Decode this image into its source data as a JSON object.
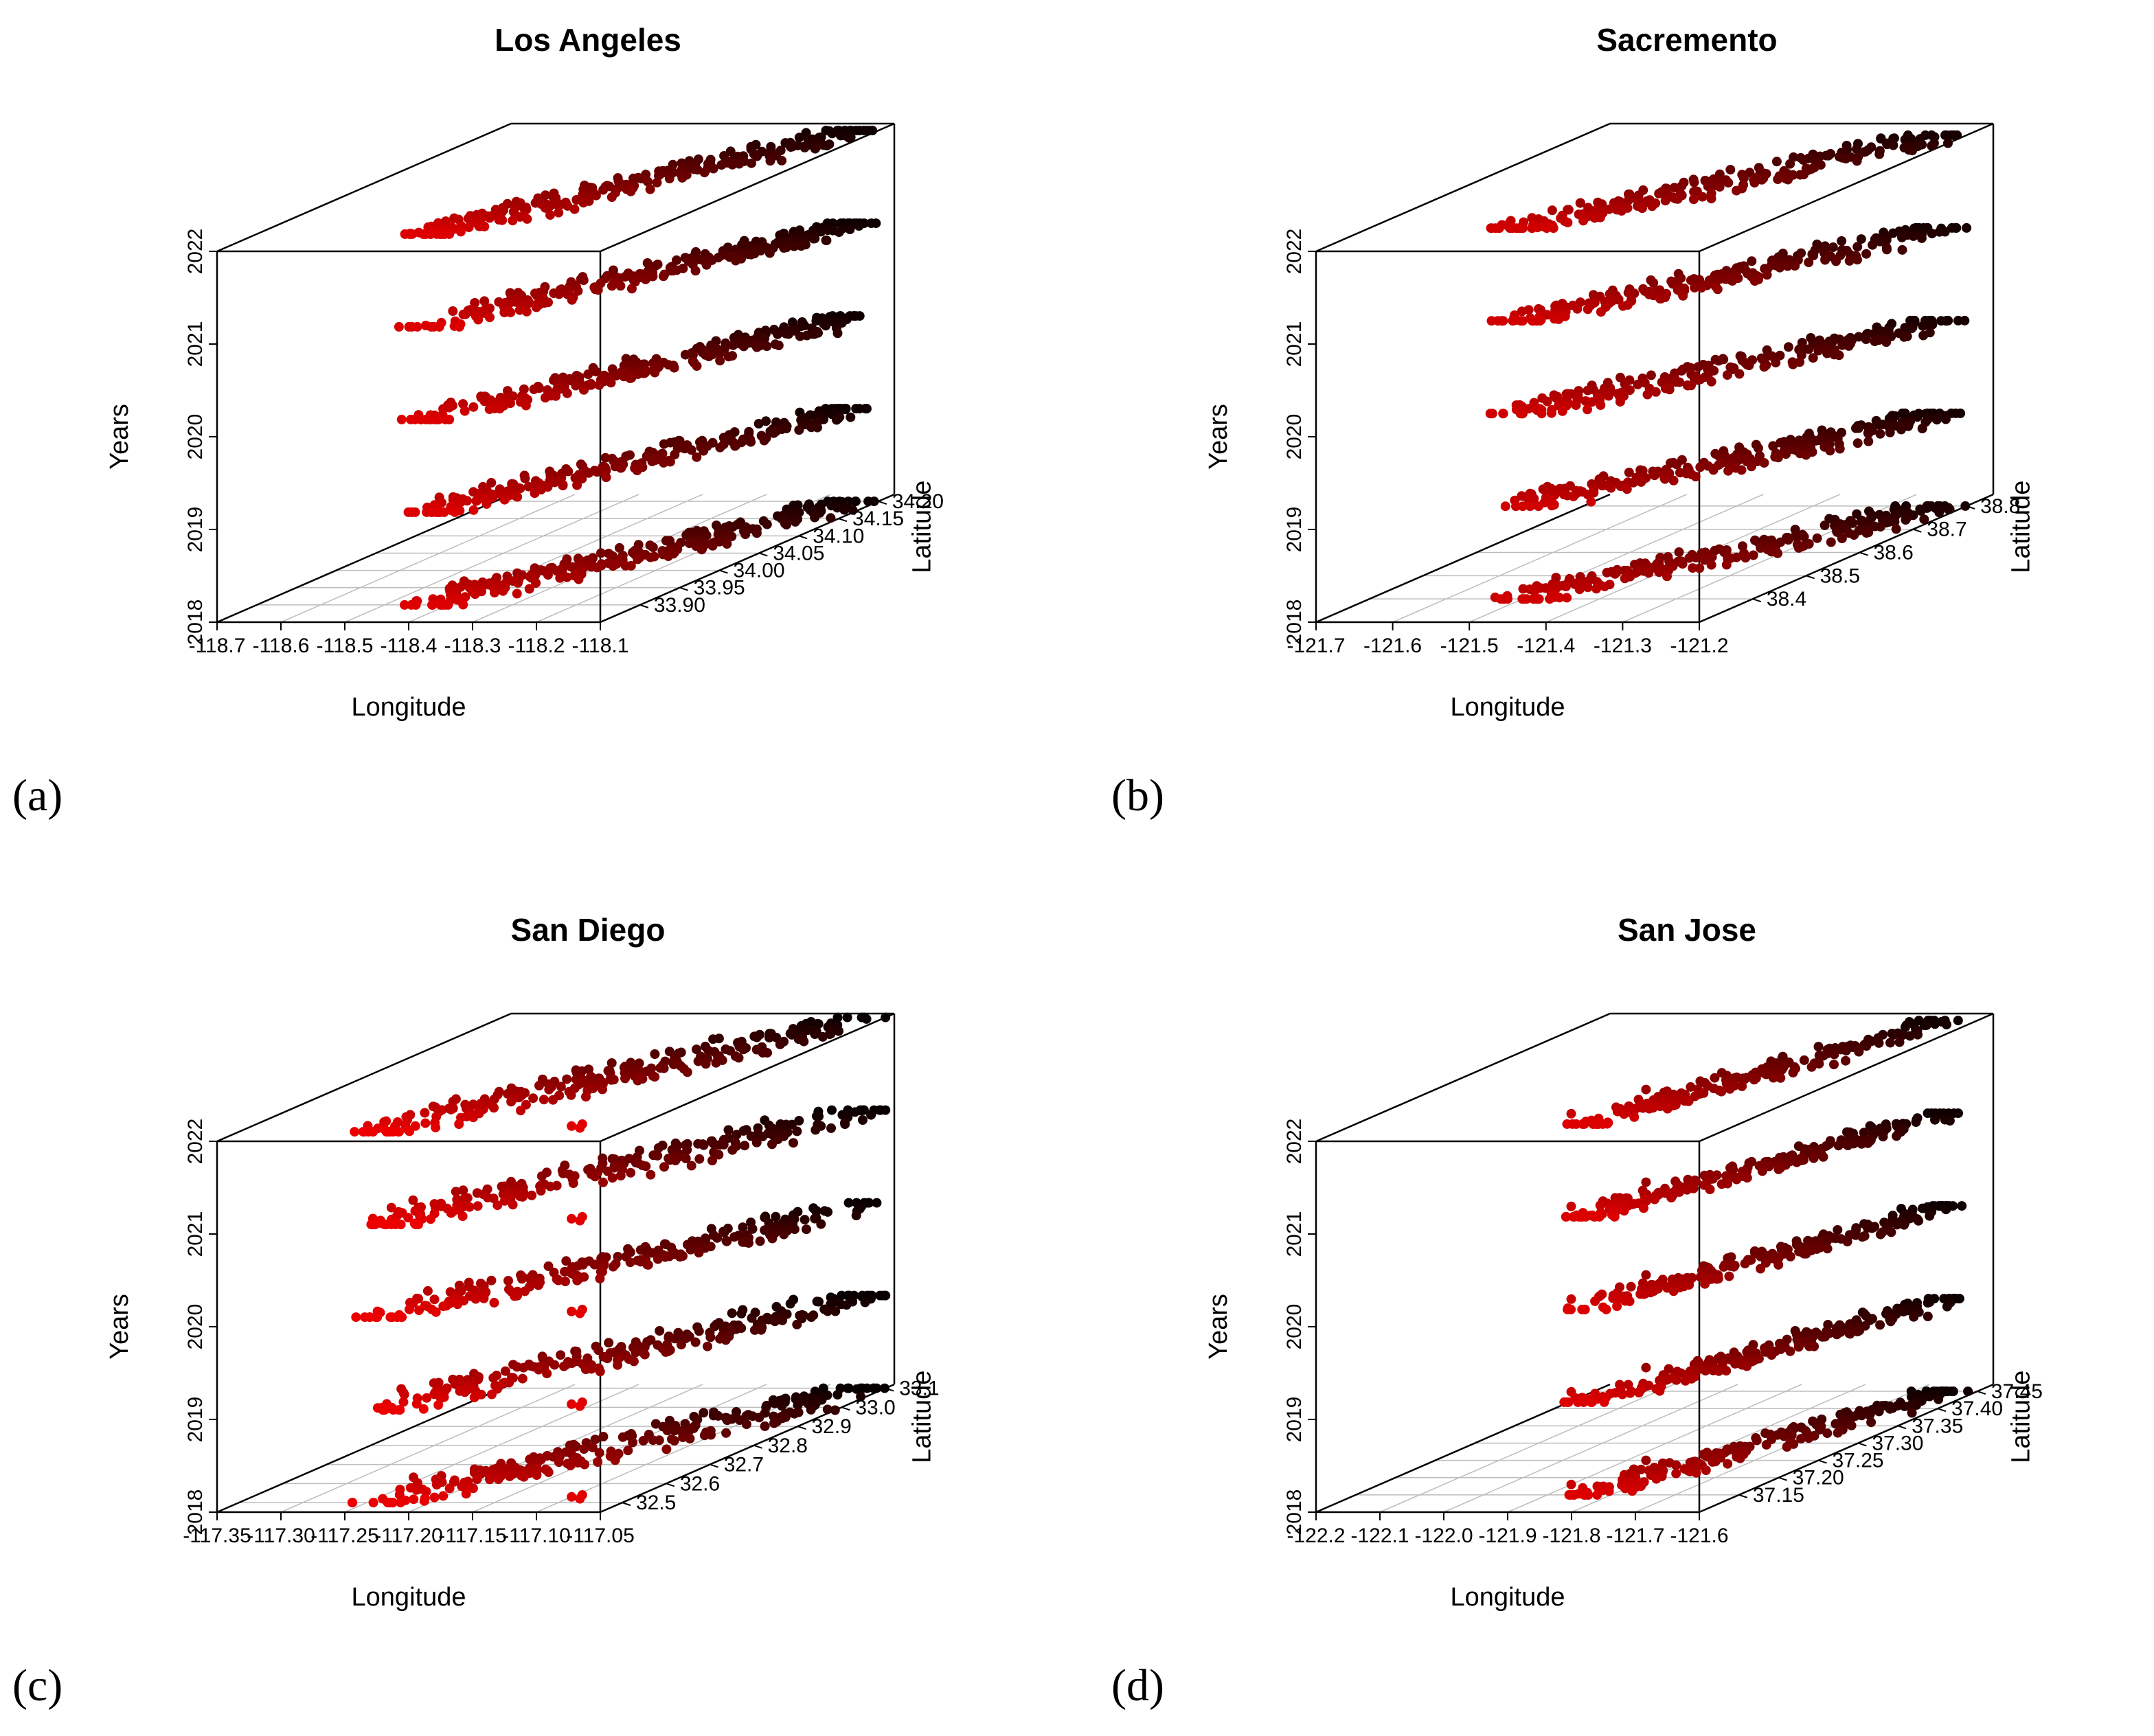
{
  "chart_data": [
    {
      "type": "scatter",
      "panel": "(a)",
      "title": "Los Angeles",
      "xlabel": "Longitude",
      "ylabel": "Latitude",
      "zlabel": "Years",
      "xlim": [
        -118.7,
        -118.1
      ],
      "ylim": [
        33.85,
        34.22
      ],
      "zlim": [
        2018,
        2022
      ],
      "x_ticks": [
        "-118.7",
        "-118.6",
        "-118.5",
        "-118.4",
        "-118.3",
        "-118.2",
        "-118.1"
      ],
      "x_tick_values": [
        -118.7,
        -118.6,
        -118.5,
        -118.4,
        -118.3,
        -118.2,
        -118.1
      ],
      "y_ticks": [
        "33.90",
        "33.95",
        "34.00",
        "34.05",
        "34.10",
        "34.15",
        "34.20"
      ],
      "y_tick_values": [
        33.9,
        33.95,
        34.0,
        34.05,
        34.1,
        34.15,
        34.2
      ],
      "z_ticks": [
        "2018",
        "2019",
        "2020",
        "2021",
        "2022"
      ],
      "z_tick_values": [
        2018,
        2019,
        2020,
        2021,
        2022
      ],
      "color_low": "#ff0000",
      "color_high": "#000000",
      "cluster": {
        "x_min": -118.45,
        "x_max": -118.13,
        "y_min": 33.9,
        "y_max": 34.2,
        "x_spread": 0.03
      },
      "outliers": [],
      "points_per_year": 240,
      "seed": 11,
      "series": [
        {
          "name": "2018",
          "z": 2018
        },
        {
          "name": "2019",
          "z": 2019
        },
        {
          "name": "2020",
          "z": 2020
        },
        {
          "name": "2021",
          "z": 2021
        },
        {
          "name": "2022",
          "z": 2022
        }
      ]
    },
    {
      "type": "scatter",
      "panel": "(b)",
      "title": "Sacremento",
      "xlabel": "Longitude",
      "ylabel": "Latitude",
      "zlabel": "Years",
      "xlim": [
        -121.7,
        -121.2
      ],
      "ylim": [
        38.3,
        38.85
      ],
      "zlim": [
        2018,
        2022
      ],
      "x_ticks": [
        "-121.7",
        "-121.6",
        "-121.5",
        "-121.4",
        "-121.3",
        "-121.2"
      ],
      "x_tick_values": [
        -121.7,
        -121.6,
        -121.5,
        -121.4,
        -121.3,
        -121.2
      ],
      "y_ticks": [
        "38.4",
        "38.5",
        "38.6",
        "38.7",
        "38.8"
      ],
      "y_tick_values": [
        38.4,
        38.5,
        38.6,
        38.7,
        38.8
      ],
      "z_ticks": [
        "2018",
        "2019",
        "2020",
        "2021",
        "2022"
      ],
      "z_tick_values": [
        2018,
        2019,
        2020,
        2021,
        2022
      ],
      "color_low": "#ff0000",
      "color_high": "#000000",
      "cluster": {
        "x_min": -121.52,
        "x_max": -121.22,
        "y_min": 38.4,
        "y_max": 38.8,
        "x_spread": 0.03
      },
      "outliers": [
        {
          "x": -121.5,
          "y": 38.4
        },
        {
          "x": -121.45,
          "y": 38.45
        }
      ],
      "points_per_year": 220,
      "seed": 23,
      "series": [
        {
          "name": "2018",
          "z": 2018
        },
        {
          "name": "2019",
          "z": 2019
        },
        {
          "name": "2020",
          "z": 2020
        },
        {
          "name": "2021",
          "z": 2021
        },
        {
          "name": "2022",
          "z": 2022
        }
      ]
    },
    {
      "type": "scatter",
      "panel": "(c)",
      "title": "San Diego",
      "xlabel": "Longitude",
      "ylabel": "Latitude",
      "zlabel": "Years",
      "xlim": [
        -117.35,
        -117.05
      ],
      "ylim": [
        32.45,
        33.12
      ],
      "zlim": [
        2018,
        2022
      ],
      "x_ticks": [
        "-117.35",
        "-117.30",
        "-117.25",
        "-117.20",
        "-117.15",
        "-117.10",
        "-117.05"
      ],
      "x_tick_values": [
        -117.35,
        -117.3,
        -117.25,
        -117.2,
        -117.15,
        -117.1,
        -117.05
      ],
      "y_ticks": [
        "32.5",
        "32.6",
        "32.7",
        "32.8",
        "32.9",
        "33.0",
        "33.1"
      ],
      "y_tick_values": [
        32.5,
        32.6,
        32.7,
        32.8,
        32.9,
        33.0,
        33.1
      ],
      "z_ticks": [
        "2018",
        "2019",
        "2020",
        "2021",
        "2022"
      ],
      "z_tick_values": [
        2018,
        2019,
        2020,
        2021,
        2022
      ],
      "color_low": "#ff0000",
      "color_high": "#000000",
      "cluster": {
        "x_min": -117.25,
        "x_max": -117.06,
        "y_min": 32.5,
        "y_max": 33.1,
        "x_spread": 0.02
      },
      "outliers": [
        {
          "x": -117.1,
          "y": 32.53
        },
        {
          "x": -117.095,
          "y": 32.54
        },
        {
          "x": -117.09,
          "y": 32.52
        }
      ],
      "points_per_year": 230,
      "seed": 37,
      "series": [
        {
          "name": "2018",
          "z": 2018
        },
        {
          "name": "2019",
          "z": 2019
        },
        {
          "name": "2020",
          "z": 2020
        },
        {
          "name": "2021",
          "z": 2021
        },
        {
          "name": "2022",
          "z": 2022
        }
      ]
    },
    {
      "type": "scatter",
      "panel": "(d)",
      "title": "San Jose",
      "xlabel": "Longitude",
      "ylabel": "Latitude",
      "zlabel": "Years",
      "xlim": [
        -122.2,
        -121.6
      ],
      "ylim": [
        37.1,
        37.47
      ],
      "zlim": [
        2018,
        2022
      ],
      "x_ticks": [
        "-122.2",
        "-122.1",
        "-122.0",
        "-121.9",
        "-121.8",
        "-121.7",
        "-121.6"
      ],
      "x_tick_values": [
        -122.2,
        -122.1,
        -122.0,
        -121.9,
        -121.8,
        -121.7,
        -121.6
      ],
      "y_ticks": [
        "37.15",
        "37.20",
        "37.25",
        "37.30",
        "37.35",
        "37.40",
        "37.45"
      ],
      "y_tick_values": [
        37.15,
        37.2,
        37.25,
        37.3,
        37.35,
        37.4,
        37.45
      ],
      "z_ticks": [
        "2018",
        "2019",
        "2020",
        "2021",
        "2022"
      ],
      "z_tick_values": [
        2018,
        2019,
        2020,
        2021,
        2022
      ],
      "color_low": "#ff0000",
      "color_high": "#000000",
      "cluster": {
        "x_min": -121.85,
        "x_max": -121.64,
        "y_min": 37.15,
        "y_max": 37.45,
        "x_spread": 0.03
      },
      "outliers": [
        {
          "x": -121.9,
          "y": 37.18
        },
        {
          "x": -121.87,
          "y": 37.25
        }
      ],
      "points_per_year": 210,
      "seed": 53,
      "series": [
        {
          "name": "2018",
          "z": 2018
        },
        {
          "name": "2019",
          "z": 2019
        },
        {
          "name": "2020",
          "z": 2020
        },
        {
          "name": "2021",
          "z": 2021
        },
        {
          "name": "2022",
          "z": 2022
        }
      ]
    }
  ]
}
